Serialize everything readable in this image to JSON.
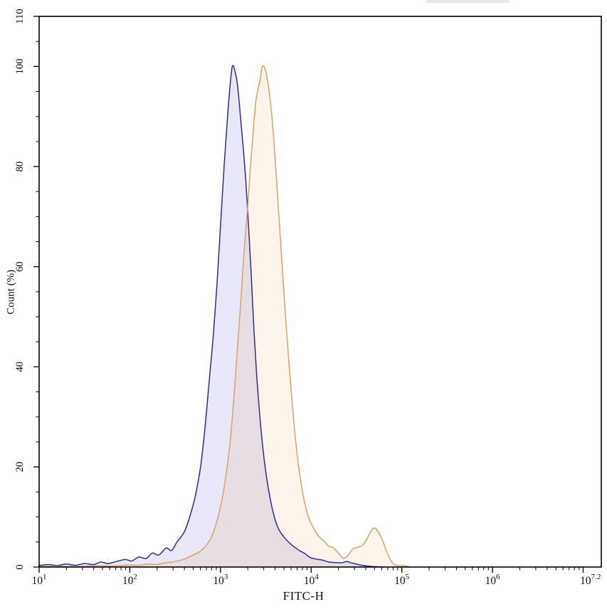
{
  "chart_data": {
    "type": "area",
    "title": "",
    "xlabel": "FITC-H",
    "ylabel": "Count (%)",
    "x_scale": "log10",
    "x_domain_log": [
      1,
      7.2
    ],
    "ylim": [
      0,
      110
    ],
    "grid": false,
    "legend": null,
    "x_major_tick_logs": [
      1,
      2,
      3,
      4,
      5,
      6,
      7
    ],
    "x_tick_labels": [
      {
        "log": 1,
        "base": "10",
        "exp": "1"
      },
      {
        "log": 2,
        "base": "10",
        "exp": "2"
      },
      {
        "log": 3,
        "base": "10",
        "exp": "3"
      },
      {
        "log": 4,
        "base": "10",
        "exp": "4"
      },
      {
        "log": 5,
        "base": "10",
        "exp": "5"
      },
      {
        "log": 6,
        "base": "10",
        "exp": "6"
      },
      {
        "log": 7.08,
        "base": "10",
        "exp": "7.2"
      }
    ],
    "y_ticks": [
      {
        "value": 0,
        "label": "0"
      },
      {
        "value": 20,
        "label": "20"
      },
      {
        "value": 40,
        "label": "40"
      },
      {
        "value": 60,
        "label": "60"
      },
      {
        "value": 80,
        "label": "80"
      },
      {
        "value": 100,
        "label": "100"
      },
      {
        "value": 110,
        "label": "110"
      }
    ],
    "y_minor_step": 5,
    "frame_color": "#000000",
    "series": [
      {
        "name": "blue-histogram",
        "line_color": "#2e2e96",
        "fill_color": "#5050c8",
        "fill_opacity": 0.13,
        "peak_log10": 3.13,
        "peak_percent": 100,
        "points": [
          [
            1.0,
            0.3
          ],
          [
            1.1,
            0.5
          ],
          [
            1.2,
            0.3
          ],
          [
            1.3,
            0.6
          ],
          [
            1.4,
            0.35
          ],
          [
            1.5,
            0.7
          ],
          [
            1.6,
            0.5
          ],
          [
            1.68,
            1.0
          ],
          [
            1.76,
            0.7
          ],
          [
            1.85,
            1.1
          ],
          [
            1.95,
            1.5
          ],
          [
            2.02,
            1.2
          ],
          [
            2.1,
            2.0
          ],
          [
            2.18,
            1.7
          ],
          [
            2.25,
            2.8
          ],
          [
            2.32,
            2.4
          ],
          [
            2.4,
            3.8
          ],
          [
            2.46,
            3.3
          ],
          [
            2.52,
            5.0
          ],
          [
            2.6,
            7.0
          ],
          [
            2.66,
            10
          ],
          [
            2.72,
            14
          ],
          [
            2.78,
            20
          ],
          [
            2.83,
            28
          ],
          [
            2.88,
            38
          ],
          [
            2.92,
            46
          ],
          [
            2.96,
            56
          ],
          [
            3.0,
            68
          ],
          [
            3.04,
            80
          ],
          [
            3.07,
            88
          ],
          [
            3.1,
            95
          ],
          [
            3.13,
            100
          ],
          [
            3.16,
            99
          ],
          [
            3.19,
            96
          ],
          [
            3.22,
            90
          ],
          [
            3.25,
            84
          ],
          [
            3.28,
            77
          ],
          [
            3.31,
            68
          ],
          [
            3.34,
            58
          ],
          [
            3.37,
            47
          ],
          [
            3.4,
            38
          ],
          [
            3.43,
            31
          ],
          [
            3.46,
            25
          ],
          [
            3.5,
            19
          ],
          [
            3.54,
            14.5
          ],
          [
            3.58,
            11
          ],
          [
            3.62,
            8.5
          ],
          [
            3.66,
            7.0
          ],
          [
            3.7,
            6.0
          ],
          [
            3.74,
            5.2
          ],
          [
            3.78,
            4.5
          ],
          [
            3.83,
            3.8
          ],
          [
            3.88,
            3.2
          ],
          [
            3.93,
            2.7
          ],
          [
            3.99,
            1.9
          ],
          [
            4.05,
            1.6
          ],
          [
            4.12,
            1.4
          ],
          [
            4.2,
            1.0
          ],
          [
            4.28,
            0.9
          ],
          [
            4.34,
            0.85
          ],
          [
            4.39,
            1.1
          ],
          [
            4.45,
            0.8
          ],
          [
            4.52,
            0.5
          ],
          [
            4.58,
            0.3
          ],
          [
            4.64,
            0.15
          ],
          [
            4.72,
            0.05
          ],
          [
            4.8,
            0
          ]
        ]
      },
      {
        "name": "orange-histogram",
        "line_color": "#d9a26e",
        "fill_color": "#e8a050",
        "fill_opacity": 0.12,
        "peak_log10": 3.46,
        "peak_percent": 100,
        "secondary_peak_log10": 4.7,
        "secondary_peak_percent": 7.8,
        "points": [
          [
            1.0,
            0.1
          ],
          [
            1.2,
            0.15
          ],
          [
            1.4,
            0.1
          ],
          [
            1.6,
            0.25
          ],
          [
            1.8,
            0.2
          ],
          [
            1.95,
            0.4
          ],
          [
            2.1,
            0.35
          ],
          [
            2.2,
            0.6
          ],
          [
            2.3,
            0.5
          ],
          [
            2.4,
            0.9
          ],
          [
            2.5,
            1.1
          ],
          [
            2.6,
            1.6
          ],
          [
            2.7,
            2.4
          ],
          [
            2.78,
            3.2
          ],
          [
            2.85,
            4.5
          ],
          [
            2.9,
            6.0
          ],
          [
            2.95,
            8.5
          ],
          [
            3.0,
            12
          ],
          [
            3.05,
            17
          ],
          [
            3.1,
            24
          ],
          [
            3.14,
            32
          ],
          [
            3.18,
            42
          ],
          [
            3.22,
            52
          ],
          [
            3.26,
            63
          ],
          [
            3.3,
            72
          ],
          [
            3.33,
            80
          ],
          [
            3.36,
            87
          ],
          [
            3.39,
            93
          ],
          [
            3.42,
            96
          ],
          [
            3.44,
            97.5
          ],
          [
            3.46,
            100
          ],
          [
            3.5,
            99
          ],
          [
            3.55,
            93
          ],
          [
            3.59,
            85
          ],
          [
            3.63,
            74
          ],
          [
            3.67,
            63
          ],
          [
            3.71,
            52
          ],
          [
            3.75,
            42
          ],
          [
            3.79,
            33
          ],
          [
            3.83,
            25
          ],
          [
            3.87,
            19
          ],
          [
            3.92,
            13.5
          ],
          [
            3.97,
            10
          ],
          [
            4.02,
            8.0
          ],
          [
            4.08,
            6.2
          ],
          [
            4.14,
            5.2
          ],
          [
            4.19,
            4.2
          ],
          [
            4.24,
            3.9
          ],
          [
            4.29,
            3.0
          ],
          [
            4.33,
            2.2
          ],
          [
            4.36,
            1.7
          ],
          [
            4.41,
            2.4
          ],
          [
            4.46,
            3.6
          ],
          [
            4.52,
            4.0
          ],
          [
            4.57,
            4.4
          ],
          [
            4.62,
            5.8
          ],
          [
            4.66,
            7.2
          ],
          [
            4.7,
            7.8
          ],
          [
            4.74,
            7.0
          ],
          [
            4.79,
            5.2
          ],
          [
            4.83,
            3.2
          ],
          [
            4.87,
            1.6
          ],
          [
            4.91,
            0.6
          ],
          [
            4.96,
            0.25
          ],
          [
            5.02,
            0.3
          ],
          [
            5.08,
            0.05
          ]
        ]
      }
    ]
  }
}
